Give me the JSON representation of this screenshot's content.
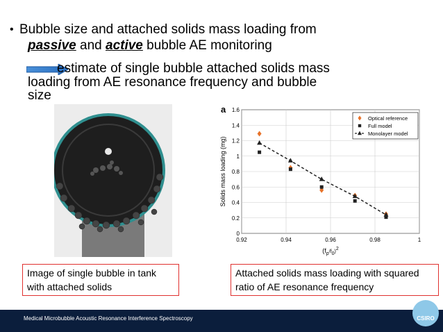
{
  "slide": {
    "bullet_pre": "Bubble size and attached solids mass loading from",
    "passive": "passive",
    "and": "and",
    "active": "active",
    "bullet_post": "bubble AE monitoring",
    "estimate_line1": "estimate of single bubble attached solids mass",
    "estimate_line2": "loading from AE resonance frequency and bubble",
    "estimate_line3": "size",
    "caption_left": "Image of single bubble in tank with attached solids",
    "caption_right": "Attached solids mass loading with squared ratio of AE resonance frequency",
    "footer": "Medical Microbubble Acoustic Resonance Interference Spectroscopy",
    "logo_text": "CSIRO"
  },
  "chart_data": {
    "type": "scatter",
    "panel_label": "a",
    "xlabel_main": "(f",
    "xlabel_sub1": "p",
    "xlabel_mid": "/f",
    "xlabel_sub2": "0",
    "xlabel_end": ")",
    "xlabel_sup": "2",
    "ylabel": "Solids mass loading (mg)",
    "xlim": [
      0.92,
      1.0
    ],
    "ylim": [
      0,
      1.6
    ],
    "xticks": [
      "0.92",
      "0.94",
      "0.96",
      "0.98",
      "1"
    ],
    "yticks": [
      "0",
      "0.2",
      "0.4",
      "0.6",
      "0.8",
      "1",
      "1.2",
      "1.4",
      "1.6"
    ],
    "legend_position": "top-right",
    "grid": true,
    "series": [
      {
        "name": "Optical reference",
        "marker": "diamond",
        "color": "#e8732a",
        "x": [
          0.928,
          0.942,
          0.956,
          0.971,
          0.985
        ],
        "y": [
          1.29,
          0.85,
          0.56,
          0.49,
          0.25
        ]
      },
      {
        "name": "Full model",
        "marker": "square",
        "color": "#222222",
        "x": [
          0.928,
          0.942,
          0.956,
          0.971,
          0.985
        ],
        "y": [
          1.05,
          0.83,
          0.6,
          0.42,
          0.21
        ]
      },
      {
        "name": "Monolayer model",
        "marker": "triangle",
        "color": "#222222",
        "line": "dashed",
        "x": [
          0.928,
          0.942,
          0.956,
          0.971,
          0.985
        ],
        "y": [
          1.17,
          0.94,
          0.7,
          0.48,
          0.24
        ]
      }
    ]
  }
}
